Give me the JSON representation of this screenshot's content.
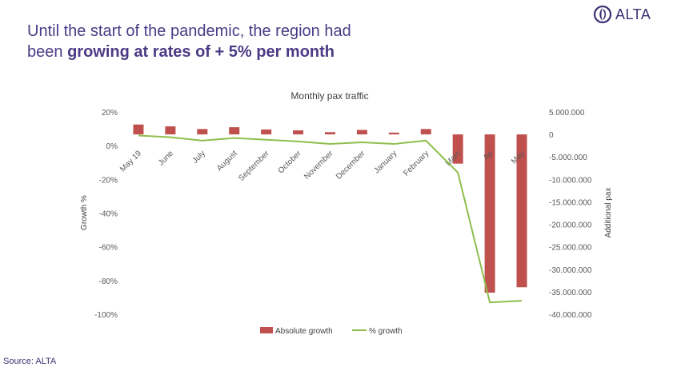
{
  "header": {
    "title_plain": "Until the start of the pandemic, the region had",
    "title_line2_plain": "been ",
    "title_bold": "growing at rates of + 5% per month"
  },
  "logo": {
    "text": "ALTA",
    "icon": "alta-swirl-icon",
    "color": "#3d2f74"
  },
  "footer": {
    "source": "Source: ALTA"
  },
  "chart_data": {
    "type": "bar",
    "title": "Monthly pax traffic",
    "categories": [
      "May 19",
      "June",
      "July",
      "August",
      "September",
      "October",
      "November",
      "December",
      "January",
      "February",
      "March",
      "April",
      "May"
    ],
    "category_labels_shown": [
      "May 19",
      "June",
      "July",
      "August",
      "September",
      "October",
      "November",
      "December",
      "January",
      "February",
      "Marc",
      "Ap",
      "May"
    ],
    "series": [
      {
        "name": "Absolute growth",
        "type": "bar",
        "axis": "right",
        "color": "#c0504d",
        "values": [
          2200000,
          1800000,
          1200000,
          1600000,
          1100000,
          900000,
          500000,
          1000000,
          400000,
          1200000,
          -6500000,
          -35200000,
          -34000000
        ]
      },
      {
        "name": "% growth",
        "type": "line",
        "axis": "left",
        "color": "#8fbe4e",
        "values": [
          6,
          5,
          3,
          4.5,
          3.5,
          2.5,
          1,
          2,
          1,
          3,
          -16,
          -93,
          -92
        ]
      }
    ],
    "ylabel": "Growth %",
    "y2label": "Additional pax",
    "ylim": [
      -100,
      20
    ],
    "y2lim": [
      -40000000,
      5000000
    ],
    "yticks": [
      "20%",
      "0%",
      "-20%",
      "-40%",
      "-60%",
      "-80%",
      "-100%"
    ],
    "yticks_values": [
      20,
      0,
      -20,
      -40,
      -60,
      -80,
      -100
    ],
    "y2ticks": [
      "5.000.000",
      "0",
      "-5.000.000",
      "-10.000.000",
      "-15.000.000",
      "-20.000.000",
      "-25.000.000",
      "-30.000.000",
      "-35.000.000",
      "-40.000.000"
    ],
    "y2ticks_values": [
      5000000,
      0,
      -5000000,
      -10000000,
      -15000000,
      -20000000,
      -25000000,
      -30000000,
      -35000000,
      -40000000
    ],
    "grid": false,
    "legend_position": "bottom"
  }
}
